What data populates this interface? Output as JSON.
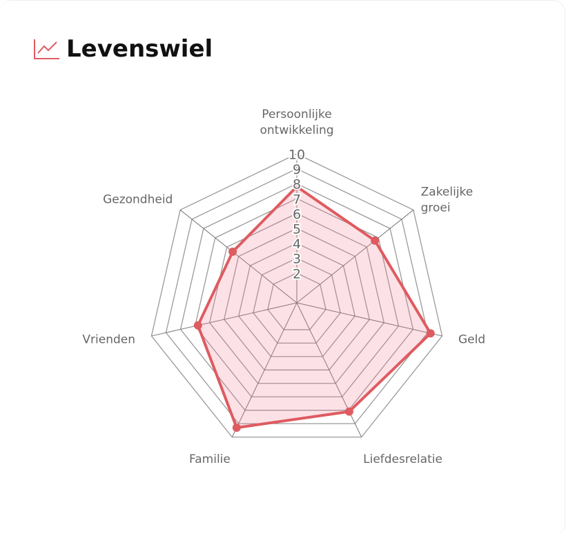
{
  "header": {
    "title": "Levenswiel"
  },
  "chart_data": {
    "type": "radar",
    "categories": [
      [
        "Persoonlijke",
        "ontwikkeling"
      ],
      [
        "Zakelijke",
        "groei"
      ],
      [
        "Geld"
      ],
      [
        "Liefdesrelatie"
      ],
      [
        "Familie"
      ],
      [
        "Vrienden"
      ],
      [
        "Gezondheid"
      ]
    ],
    "values": [
      7.8,
      6.7,
      9.2,
      8.1,
      9.3,
      6.8,
      5.5
    ],
    "color": "#de5b60",
    "fill": "rgba(240,120,140,0.22)",
    "rlim": [
      0,
      10
    ],
    "rticks": [
      2,
      3,
      4,
      5,
      6,
      7,
      8,
      9,
      10
    ],
    "grid": true
  }
}
